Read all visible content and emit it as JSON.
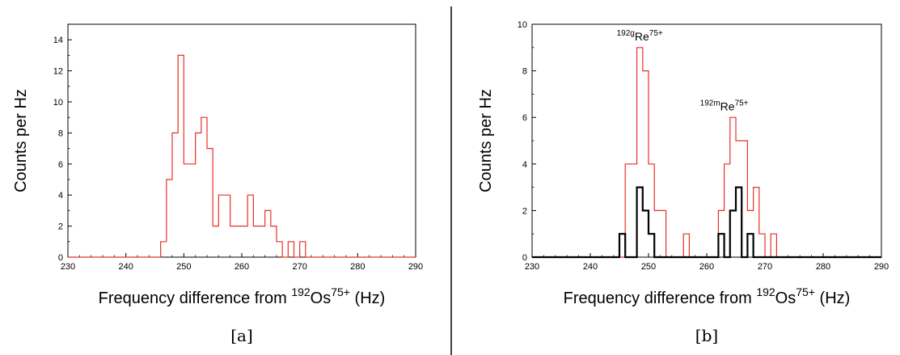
{
  "chart_data": [
    {
      "type": "histogram",
      "panel_label": "[a]",
      "xlabel": {
        "pre": "Frequency difference from ",
        "mass": "192",
        "element": "Os",
        "charge": "75+",
        "post": " (Hz)"
      },
      "ylabel": "Counts per Hz",
      "xlim": [
        230,
        290
      ],
      "ylim": [
        0,
        15
      ],
      "xticks": [
        230,
        240,
        250,
        260,
        270,
        280,
        290
      ],
      "yticks": [
        0,
        2,
        4,
        6,
        8,
        10,
        12,
        14
      ],
      "series": [
        {
          "color": "#e8302a",
          "bin_width": 1,
          "bin_start": 246,
          "values": [
            1,
            5,
            8,
            13,
            6,
            6,
            8,
            9,
            7,
            2,
            4,
            4,
            2,
            2,
            2,
            4,
            2,
            2,
            3,
            2,
            1,
            0,
            1,
            0,
            1
          ]
        }
      ]
    },
    {
      "type": "histogram",
      "panel_label": "[b]",
      "xlabel": {
        "pre": "Frequency difference from ",
        "mass": "192",
        "element": "Os",
        "charge": "75+",
        "post": " (Hz)"
      },
      "ylabel": "Counts per Hz",
      "xlim": [
        230,
        290
      ],
      "ylim": [
        0,
        10
      ],
      "xticks": [
        230,
        240,
        250,
        260,
        270,
        280,
        290
      ],
      "yticks": [
        0,
        2,
        4,
        6,
        8,
        10
      ],
      "annotations": [
        {
          "mass": "192g",
          "element": "Re",
          "charge": "75+",
          "x": 248.5,
          "y": 9.3
        },
        {
          "mass": "192m",
          "element": "Re",
          "charge": "75+",
          "x": 263,
          "y": 6.3
        }
      ],
      "series": [
        {
          "color": "#e8302a",
          "bin_width": 1,
          "bin_start": 245,
          "values": [
            0,
            4,
            4,
            9,
            8,
            4,
            2,
            2,
            0,
            0,
            0,
            1,
            0,
            0,
            0,
            0,
            0,
            2,
            4,
            6,
            5,
            5,
            2,
            3,
            1,
            0,
            1
          ]
        },
        {
          "color": "#000000",
          "bin_width": 1,
          "bin_start": 245,
          "values": [
            1,
            0,
            0,
            3,
            2,
            1,
            0,
            0,
            0,
            0,
            0,
            0,
            0,
            0,
            0,
            0,
            0,
            1,
            0,
            2,
            3,
            0,
            1,
            0,
            0,
            0,
            0
          ]
        }
      ]
    }
  ]
}
